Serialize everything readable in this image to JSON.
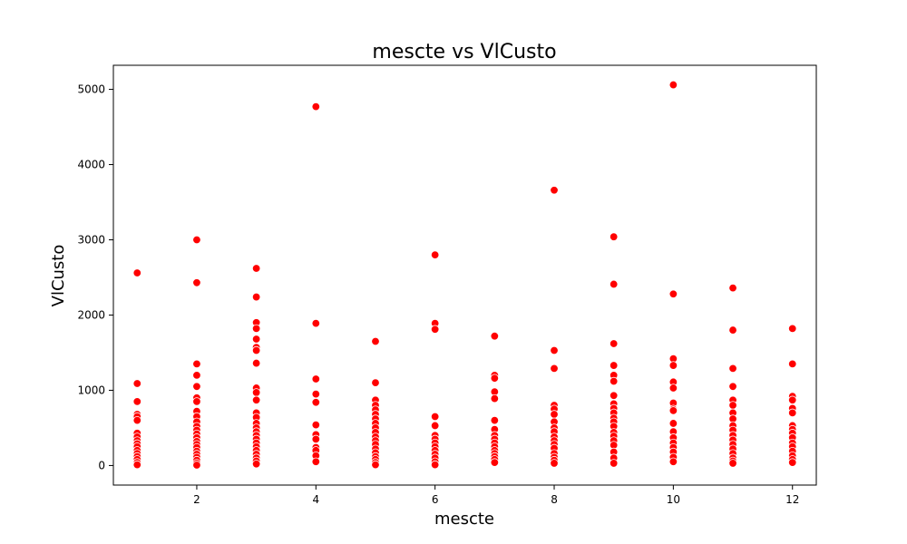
{
  "chart_data": {
    "type": "scatter",
    "title": "mescte vs VlCusto",
    "xlabel": "mescte",
    "ylabel": "VlCusto",
    "xlim": [
      0.6,
      12.4
    ],
    "ylim": [
      -260,
      5320
    ],
    "xticks": [
      2,
      4,
      6,
      8,
      10,
      12
    ],
    "yticks": [
      0,
      1000,
      2000,
      3000,
      4000,
      5000
    ],
    "grid": false,
    "legend": "none",
    "marker_color": "#ff0000",
    "marker_edge": "#ffffff",
    "series": [
      {
        "points": [
          [
            1,
            2560
          ],
          [
            1,
            1090
          ],
          [
            1,
            850
          ],
          [
            1,
            680
          ],
          [
            1,
            650
          ],
          [
            1,
            600
          ],
          [
            1,
            430
          ],
          [
            1,
            380
          ],
          [
            1,
            330
          ],
          [
            1,
            290
          ],
          [
            1,
            250
          ],
          [
            1,
            200
          ],
          [
            1,
            160
          ],
          [
            1,
            120
          ],
          [
            1,
            80
          ],
          [
            1,
            40
          ],
          [
            1,
            10
          ],
          [
            2,
            3000
          ],
          [
            2,
            2430
          ],
          [
            2,
            1350
          ],
          [
            2,
            1200
          ],
          [
            2,
            1050
          ],
          [
            2,
            900
          ],
          [
            2,
            850
          ],
          [
            2,
            720
          ],
          [
            2,
            650
          ],
          [
            2,
            580
          ],
          [
            2,
            520
          ],
          [
            2,
            470
          ],
          [
            2,
            420
          ],
          [
            2,
            370
          ],
          [
            2,
            320
          ],
          [
            2,
            280
          ],
          [
            2,
            240
          ],
          [
            2,
            190
          ],
          [
            2,
            150
          ],
          [
            2,
            110
          ],
          [
            2,
            70
          ],
          [
            2,
            30
          ],
          [
            2,
            5
          ],
          [
            3,
            2620
          ],
          [
            3,
            2240
          ],
          [
            3,
            1900
          ],
          [
            3,
            1820
          ],
          [
            3,
            1680
          ],
          [
            3,
            1570
          ],
          [
            3,
            1530
          ],
          [
            3,
            1360
          ],
          [
            3,
            1030
          ],
          [
            3,
            970
          ],
          [
            3,
            870
          ],
          [
            3,
            700
          ],
          [
            3,
            640
          ],
          [
            3,
            560
          ],
          [
            3,
            500
          ],
          [
            3,
            450
          ],
          [
            3,
            400
          ],
          [
            3,
            350
          ],
          [
            3,
            300
          ],
          [
            3,
            250
          ],
          [
            3,
            200
          ],
          [
            3,
            150
          ],
          [
            3,
            100
          ],
          [
            3,
            60
          ],
          [
            3,
            20
          ],
          [
            4,
            4770
          ],
          [
            4,
            1890
          ],
          [
            4,
            1150
          ],
          [
            4,
            950
          ],
          [
            4,
            840
          ],
          [
            4,
            540
          ],
          [
            4,
            410
          ],
          [
            4,
            350
          ],
          [
            4,
            240
          ],
          [
            4,
            200
          ],
          [
            4,
            130
          ],
          [
            4,
            50
          ],
          [
            5,
            1650
          ],
          [
            5,
            1100
          ],
          [
            5,
            870
          ],
          [
            5,
            800
          ],
          [
            5,
            740
          ],
          [
            5,
            680
          ],
          [
            5,
            620
          ],
          [
            5,
            560
          ],
          [
            5,
            500
          ],
          [
            5,
            440
          ],
          [
            5,
            380
          ],
          [
            5,
            330
          ],
          [
            5,
            280
          ],
          [
            5,
            220
          ],
          [
            5,
            170
          ],
          [
            5,
            120
          ],
          [
            5,
            80
          ],
          [
            5,
            40
          ],
          [
            5,
            10
          ],
          [
            6,
            2800
          ],
          [
            6,
            1890
          ],
          [
            6,
            1810
          ],
          [
            6,
            650
          ],
          [
            6,
            530
          ],
          [
            6,
            400
          ],
          [
            6,
            350
          ],
          [
            6,
            300
          ],
          [
            6,
            250
          ],
          [
            6,
            200
          ],
          [
            6,
            150
          ],
          [
            6,
            100
          ],
          [
            6,
            50
          ],
          [
            6,
            10
          ],
          [
            7,
            1720
          ],
          [
            7,
            1200
          ],
          [
            7,
            1160
          ],
          [
            7,
            980
          ],
          [
            7,
            890
          ],
          [
            7,
            600
          ],
          [
            7,
            480
          ],
          [
            7,
            400
          ],
          [
            7,
            350
          ],
          [
            7,
            300
          ],
          [
            7,
            250
          ],
          [
            7,
            200
          ],
          [
            7,
            160
          ],
          [
            7,
            120
          ],
          [
            7,
            80
          ],
          [
            7,
            40
          ],
          [
            8,
            3660
          ],
          [
            8,
            1530
          ],
          [
            8,
            1290
          ],
          [
            8,
            800
          ],
          [
            8,
            750
          ],
          [
            8,
            680
          ],
          [
            8,
            580
          ],
          [
            8,
            500
          ],
          [
            8,
            450
          ],
          [
            8,
            380
          ],
          [
            8,
            330
          ],
          [
            8,
            280
          ],
          [
            8,
            230
          ],
          [
            8,
            160
          ],
          [
            8,
            110
          ],
          [
            8,
            70
          ],
          [
            8,
            30
          ],
          [
            9,
            3040
          ],
          [
            9,
            2410
          ],
          [
            9,
            1620
          ],
          [
            9,
            1330
          ],
          [
            9,
            1200
          ],
          [
            9,
            1120
          ],
          [
            9,
            930
          ],
          [
            9,
            820
          ],
          [
            9,
            760
          ],
          [
            9,
            700
          ],
          [
            9,
            630
          ],
          [
            9,
            580
          ],
          [
            9,
            520
          ],
          [
            9,
            440
          ],
          [
            9,
            390
          ],
          [
            9,
            330
          ],
          [
            9,
            270
          ],
          [
            9,
            180
          ],
          [
            9,
            100
          ],
          [
            9,
            30
          ],
          [
            10,
            5060
          ],
          [
            10,
            2280
          ],
          [
            10,
            1420
          ],
          [
            10,
            1330
          ],
          [
            10,
            1110
          ],
          [
            10,
            1030
          ],
          [
            10,
            830
          ],
          [
            10,
            750
          ],
          [
            10,
            730
          ],
          [
            10,
            560
          ],
          [
            10,
            450
          ],
          [
            10,
            370
          ],
          [
            10,
            300
          ],
          [
            10,
            240
          ],
          [
            10,
            180
          ],
          [
            10,
            110
          ],
          [
            10,
            50
          ],
          [
            11,
            2360
          ],
          [
            11,
            1800
          ],
          [
            11,
            1290
          ],
          [
            11,
            1050
          ],
          [
            11,
            870
          ],
          [
            11,
            800
          ],
          [
            11,
            700
          ],
          [
            11,
            620
          ],
          [
            11,
            530
          ],
          [
            11,
            470
          ],
          [
            11,
            400
          ],
          [
            11,
            340
          ],
          [
            11,
            280
          ],
          [
            11,
            220
          ],
          [
            11,
            160
          ],
          [
            11,
            100
          ],
          [
            11,
            60
          ],
          [
            11,
            30
          ],
          [
            12,
            1820
          ],
          [
            12,
            1350
          ],
          [
            12,
            920
          ],
          [
            12,
            870
          ],
          [
            12,
            760
          ],
          [
            12,
            700
          ],
          [
            12,
            530
          ],
          [
            12,
            480
          ],
          [
            12,
            430
          ],
          [
            12,
            370
          ],
          [
            12,
            300
          ],
          [
            12,
            250
          ],
          [
            12,
            190
          ],
          [
            12,
            130
          ],
          [
            12,
            80
          ],
          [
            12,
            40
          ]
        ]
      }
    ]
  }
}
